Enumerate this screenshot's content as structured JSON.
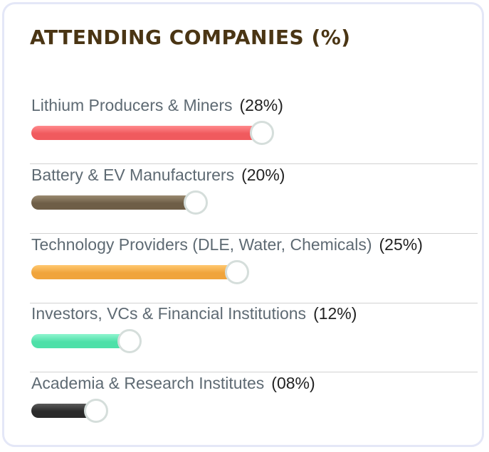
{
  "title": "ATTENDING COMPANIES (%)",
  "colors": {
    "title": "#4a3514",
    "label": "#5e6a73",
    "percent": "#222222",
    "card_border": "#e4e7f7",
    "knob_border": "#d5dedb"
  },
  "items": [
    {
      "label": "Lithium Producers & Miners",
      "percent_label": "(28%)",
      "value": 28,
      "color": "#f05a5e",
      "color_light": "#ff8a8d"
    },
    {
      "label": "Battery & EV Manufacturers",
      "percent_label": "(20%)",
      "value": 20,
      "color": "#6e5e47",
      "color_light": "#9a8a70"
    },
    {
      "label": "Technology Providers (DLE, Water, Chemicals)",
      "percent_label": "(25%)",
      "value": 25,
      "color": "#f0a43c",
      "color_light": "#ffc870"
    },
    {
      "label": "Investors, VCs & Financial Institutions",
      "percent_label": "(12%)",
      "value": 12,
      "color": "#4ee0a8",
      "color_light": "#8ff5cf"
    },
    {
      "label": "Academia & Research Institutes",
      "percent_label": "(08%)",
      "value": 8,
      "color": "#2a2a2a",
      "color_light": "#5a5a5a"
    }
  ]
}
